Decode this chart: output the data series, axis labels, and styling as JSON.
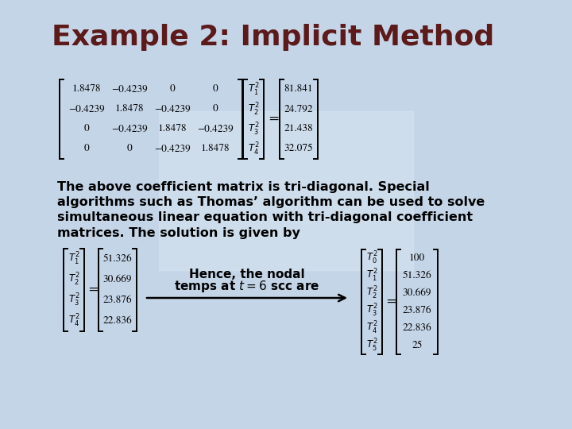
{
  "title": "Example 2: Implicit Method",
  "title_color": "#5C1A1A",
  "title_fontsize": 26,
  "matrix_A": [
    [
      "1.8478",
      "−0.4239",
      "0",
      "0"
    ],
    [
      "−0.4239",
      "1.8478",
      "−0.4239",
      "0"
    ],
    [
      "0",
      "−0.4239",
      "1.8478",
      "−0.4239"
    ],
    [
      "0",
      "0",
      "−0.4239",
      "1.8478"
    ]
  ],
  "vector_T_top": [
    "T_1^2",
    "T_2^2",
    "T_3^2",
    "T_4^2"
  ],
  "vector_b": [
    "81.841",
    "24.792",
    "21.438",
    "32.075"
  ],
  "paragraph_text": "The above coefficient matrix is tri-diagonal. Special\nalgorithms such as Thomas’ algorithm can be used to solve\nsimultaneous linear equation with tri-diagonal coefficient\nmatrices. The solution is given by",
  "solution_T_labels": [
    "T_1^2",
    "T_2^2",
    "T_3^2",
    "T_4^2"
  ],
  "solution_vals": [
    "51.326",
    "30.669",
    "23.876",
    "22.836"
  ],
  "arrow_text_line1": "Hence, the nodal",
  "arrow_text_line2": "temps at $t=6$ scc are",
  "rhs_T_subs": [
    "0",
    "1",
    "2",
    "3",
    "4",
    "5"
  ],
  "rhs_vals": [
    "100",
    "51.326",
    "30.669",
    "23.876",
    "22.836",
    "25"
  ],
  "bg_color": "#C8D6E8"
}
